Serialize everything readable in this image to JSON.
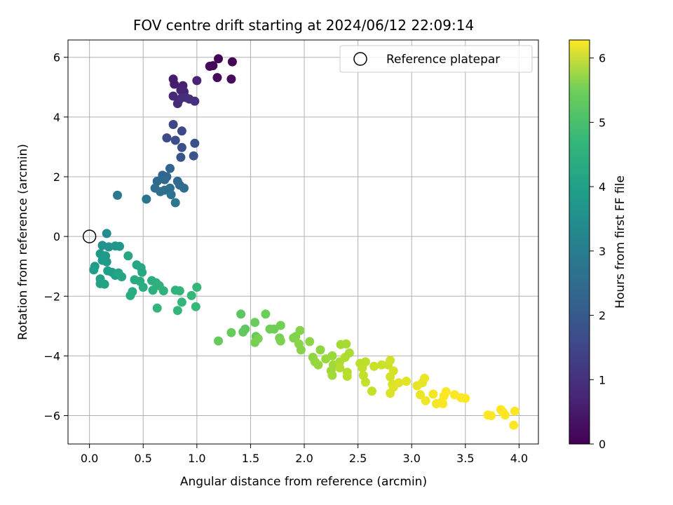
{
  "chart_data": {
    "type": "scatter",
    "title": "FOV centre drift starting at 2024/06/12 22:09:14",
    "xlabel": "Angular distance from reference (arcmin)",
    "ylabel": "Rotation from reference (arcmin)",
    "xlim": [
      -0.2,
      4.18
    ],
    "ylim": [
      -6.95,
      6.58
    ],
    "xticks": [
      0.0,
      0.5,
      1.0,
      1.5,
      2.0,
      2.5,
      3.0,
      3.5,
      4.0
    ],
    "xtick_labels": [
      "0.0",
      "0.5",
      "1.0",
      "1.5",
      "2.0",
      "2.5",
      "3.0",
      "3.5",
      "4.0"
    ],
    "yticks": [
      -6,
      -4,
      -2,
      0,
      2,
      4,
      6
    ],
    "ytick_labels": [
      "−6",
      "−4",
      "−2",
      "0",
      "2",
      "4",
      "6"
    ],
    "grid": true,
    "legend_position": "top-right",
    "legend_label": "Reference platepar",
    "reference_point": {
      "x": 0.0,
      "y": 0.0
    },
    "colorbar": {
      "label": "Hours from first FF file",
      "colormap": "viridis",
      "range": [
        0,
        6.28
      ],
      "ticks": [
        0,
        1,
        2,
        3,
        4,
        5,
        6
      ],
      "tick_labels": [
        "0",
        "1",
        "2",
        "3",
        "4",
        "5",
        "6"
      ]
    },
    "points": [
      [
        1.2,
        5.95,
        0.05
      ],
      [
        1.33,
        5.85,
        0.08
      ],
      [
        1.12,
        5.7,
        0.1
      ],
      [
        1.15,
        5.72,
        0.12
      ],
      [
        1.19,
        5.32,
        0.15
      ],
      [
        1.32,
        5.27,
        0.18
      ],
      [
        0.78,
        5.27,
        0.45
      ],
      [
        0.79,
        5.1,
        0.5
      ],
      [
        0.87,
        5.05,
        0.55
      ],
      [
        0.85,
        4.9,
        0.6
      ],
      [
        0.88,
        4.85,
        0.62
      ],
      [
        1.0,
        5.22,
        0.65
      ],
      [
        0.78,
        4.7,
        0.7
      ],
      [
        0.83,
        4.55,
        0.75
      ],
      [
        0.82,
        4.45,
        0.78
      ],
      [
        0.86,
        4.65,
        0.8
      ],
      [
        0.9,
        4.65,
        0.82
      ],
      [
        0.93,
        4.6,
        0.85
      ],
      [
        0.98,
        4.53,
        0.88
      ],
      [
        0.78,
        3.75,
        1.35
      ],
      [
        0.86,
        3.53,
        1.4
      ],
      [
        0.72,
        3.3,
        1.45
      ],
      [
        0.8,
        3.22,
        1.5
      ],
      [
        0.86,
        2.98,
        1.55
      ],
      [
        0.98,
        3.12,
        1.6
      ],
      [
        0.97,
        2.7,
        1.62
      ],
      [
        0.85,
        2.65,
        1.65
      ],
      [
        0.75,
        2.28,
        2.0
      ],
      [
        0.68,
        2.05,
        2.05
      ],
      [
        0.72,
        2.0,
        2.08
      ],
      [
        0.63,
        1.85,
        2.1
      ],
      [
        0.7,
        1.9,
        2.12
      ],
      [
        0.82,
        1.85,
        2.15
      ],
      [
        0.84,
        1.72,
        2.18
      ],
      [
        0.88,
        1.62,
        2.2
      ],
      [
        0.61,
        1.62,
        2.25
      ],
      [
        0.66,
        1.5,
        2.28
      ],
      [
        0.7,
        1.55,
        2.3
      ],
      [
        0.75,
        1.62,
        2.32
      ],
      [
        0.76,
        1.4,
        2.35
      ],
      [
        0.53,
        1.25,
        2.45
      ],
      [
        0.8,
        1.13,
        2.5
      ],
      [
        0.26,
        1.38,
        2.55
      ],
      [
        0.16,
        0.1,
        3.1
      ],
      [
        0.12,
        -0.3,
        3.2
      ],
      [
        0.18,
        -0.35,
        3.25
      ],
      [
        0.24,
        -0.32,
        3.28
      ],
      [
        0.28,
        -0.33,
        3.3
      ],
      [
        0.1,
        -0.58,
        3.35
      ],
      [
        0.15,
        -0.65,
        3.38
      ],
      [
        0.12,
        -0.8,
        3.4
      ],
      [
        0.16,
        -0.85,
        3.42
      ],
      [
        0.05,
        -1.0,
        3.45
      ],
      [
        0.04,
        -1.12,
        3.48
      ],
      [
        0.17,
        -1.15,
        3.5
      ],
      [
        0.21,
        -1.2,
        3.52
      ],
      [
        0.24,
        -1.3,
        3.55
      ],
      [
        0.1,
        -1.42,
        3.58
      ],
      [
        0.1,
        -1.58,
        3.6
      ],
      [
        0.14,
        -1.6,
        3.62
      ],
      [
        0.27,
        -1.22,
        3.65
      ],
      [
        0.3,
        -1.35,
        3.68
      ],
      [
        0.36,
        -0.65,
        3.7
      ],
      [
        0.44,
        -0.95,
        3.72
      ],
      [
        0.48,
        -1.05,
        3.75
      ],
      [
        0.49,
        -1.2,
        3.78
      ],
      [
        0.42,
        -1.45,
        3.8
      ],
      [
        0.47,
        -1.5,
        3.82
      ],
      [
        0.4,
        -1.85,
        3.85
      ],
      [
        0.38,
        -1.98,
        3.88
      ],
      [
        0.5,
        -1.7,
        3.9
      ],
      [
        0.58,
        -1.48,
        3.92
      ],
      [
        0.62,
        -1.55,
        3.95
      ],
      [
        0.59,
        -1.8,
        3.98
      ],
      [
        0.65,
        -1.65,
        4.0
      ],
      [
        0.69,
        -1.82,
        4.02
      ],
      [
        0.8,
        -1.8,
        4.05
      ],
      [
        0.84,
        -1.82,
        4.08
      ],
      [
        0.63,
        -2.4,
        4.1
      ],
      [
        0.86,
        -2.2,
        4.12
      ],
      [
        0.82,
        -2.48,
        4.15
      ],
      [
        0.95,
        -1.98,
        4.18
      ],
      [
        1.0,
        -1.7,
        4.2
      ],
      [
        0.99,
        -2.35,
        4.22
      ],
      [
        1.41,
        -2.6,
        4.65
      ],
      [
        1.45,
        -3.1,
        4.7
      ],
      [
        1.43,
        -3.2,
        4.72
      ],
      [
        1.55,
        -3.35,
        4.75
      ],
      [
        1.32,
        -3.22,
        4.78
      ],
      [
        1.2,
        -3.5,
        4.8
      ],
      [
        1.54,
        -2.88,
        4.82
      ],
      [
        1.64,
        -2.6,
        4.85
      ],
      [
        1.68,
        -3.1,
        4.88
      ],
      [
        1.72,
        -3.1,
        4.9
      ],
      [
        1.78,
        -2.98,
        4.92
      ],
      [
        1.77,
        -3.4,
        4.95
      ],
      [
        1.54,
        -3.55,
        4.98
      ],
      [
        1.57,
        -3.42,
        5.0
      ],
      [
        1.78,
        -3.5,
        5.02
      ],
      [
        1.9,
        -3.4,
        5.05
      ],
      [
        1.92,
        -3.35,
        5.08
      ],
      [
        1.96,
        -3.15,
        5.1
      ],
      [
        1.97,
        -3.8,
        5.12
      ],
      [
        1.95,
        -3.6,
        5.15
      ],
      [
        2.05,
        -3.52,
        5.18
      ],
      [
        2.08,
        -4.05,
        5.2
      ],
      [
        2.15,
        -3.8,
        5.22
      ],
      [
        2.1,
        -4.2,
        5.25
      ],
      [
        2.13,
        -4.3,
        5.28
      ],
      [
        2.2,
        -4.1,
        5.3
      ],
      [
        2.26,
        -4.0,
        5.32
      ],
      [
        2.25,
        -4.5,
        5.35
      ],
      [
        2.27,
        -4.3,
        5.38
      ],
      [
        2.26,
        -4.65,
        5.4
      ],
      [
        2.34,
        -3.62,
        5.42
      ],
      [
        2.39,
        -3.6,
        5.45
      ],
      [
        2.42,
        -3.9,
        5.48
      ],
      [
        2.33,
        -4.2,
        5.5
      ],
      [
        2.38,
        -4.05,
        5.52
      ],
      [
        2.33,
        -4.4,
        5.55
      ],
      [
        2.4,
        -4.55,
        5.58
      ],
      [
        2.4,
        -4.68,
        5.6
      ],
      [
        2.52,
        -4.25,
        5.62
      ],
      [
        2.57,
        -4.2,
        5.65
      ],
      [
        2.54,
        -4.4,
        5.68
      ],
      [
        2.55,
        -4.65,
        5.7
      ],
      [
        2.57,
        -4.88,
        5.72
      ],
      [
        2.63,
        -5.18,
        5.75
      ],
      [
        2.65,
        -4.35,
        5.78
      ],
      [
        2.72,
        -4.3,
        5.8
      ],
      [
        2.78,
        -4.3,
        5.82
      ],
      [
        2.8,
        -4.15,
        5.85
      ],
      [
        2.8,
        -4.7,
        5.88
      ],
      [
        2.83,
        -4.5,
        5.9
      ],
      [
        2.82,
        -4.95,
        5.92
      ],
      [
        2.8,
        -5.25,
        5.95
      ],
      [
        2.83,
        -5.05,
        5.98
      ],
      [
        2.88,
        -4.9,
        6.0
      ],
      [
        2.95,
        -4.85,
        6.02
      ],
      [
        3.05,
        -5.0,
        6.05
      ],
      [
        3.1,
        -4.9,
        6.08
      ],
      [
        3.12,
        -4.75,
        6.1
      ],
      [
        3.08,
        -5.3,
        6.12
      ],
      [
        3.13,
        -5.5,
        6.15
      ],
      [
        3.2,
        -5.28,
        6.18
      ],
      [
        3.23,
        -5.6,
        6.2
      ],
      [
        3.28,
        -5.55,
        6.22
      ],
      [
        3.29,
        -5.6,
        6.24
      ],
      [
        3.3,
        -5.35,
        6.25
      ],
      [
        3.32,
        -5.2,
        6.26
      ],
      [
        3.4,
        -5.3,
        6.27
      ],
      [
        3.46,
        -5.4,
        6.27
      ],
      [
        3.5,
        -5.42,
        6.28
      ],
      [
        3.71,
        -5.98,
        6.28
      ],
      [
        3.74,
        -6.0,
        6.28
      ],
      [
        3.83,
        -5.8,
        6.28
      ],
      [
        3.85,
        -5.88,
        6.28
      ],
      [
        3.87,
        -5.98,
        6.28
      ],
      [
        3.96,
        -5.85,
        6.28
      ],
      [
        3.95,
        -6.32,
        6.28
      ]
    ]
  }
}
